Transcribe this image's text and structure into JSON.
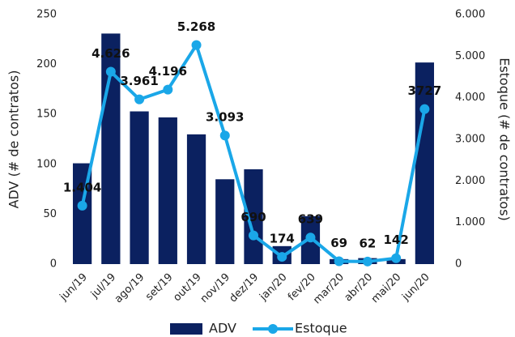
{
  "chart_data": {
    "type": "bar+line",
    "categories": [
      "jun/19",
      "jul/19",
      "ago/19",
      "set/19",
      "out/19",
      "nov/19",
      "dez/19",
      "jan/20",
      "fev/20",
      "mar/20",
      "abr/20",
      "mai/20",
      "jun/20"
    ],
    "series": [
      {
        "name": "ADV",
        "type": "bar",
        "color": "#0b2160",
        "values": [
          101,
          231,
          153,
          147,
          130,
          85,
          95,
          18,
          48,
          5,
          6,
          5,
          202
        ]
      },
      {
        "name": "Estoque",
        "type": "line",
        "axis": "y2",
        "color": "#1aa7e8",
        "values": [
          1404,
          4626,
          3961,
          4196,
          5268,
          3093,
          690,
          174,
          639,
          69,
          62,
          142,
          3727
        ],
        "value_labels": [
          "1.404",
          "4.626",
          "3.961",
          "4.196",
          "5.268",
          "3.093",
          "690",
          "174",
          "639",
          "69",
          "62",
          "142",
          "3727"
        ]
      }
    ],
    "ylabel": "ADV (# de contratos)",
    "y2label": "Estoque (# de contratos)",
    "ylim": [
      0,
      250
    ],
    "yticks": [
      0,
      50,
      100,
      150,
      200,
      250
    ],
    "y2lim": [
      0,
      6000
    ],
    "y2ticks": [
      0,
      {
        "value": 1000,
        "label": "1.000"
      },
      {
        "value": 2000,
        "label": "2.000"
      },
      {
        "value": 3000,
        "label": "3.000"
      },
      {
        "value": 4000,
        "label": "4.000"
      },
      {
        "value": 5000,
        "label": "5.000"
      },
      {
        "value": 6000,
        "label": "6.000"
      }
    ],
    "legend": "bottom"
  }
}
